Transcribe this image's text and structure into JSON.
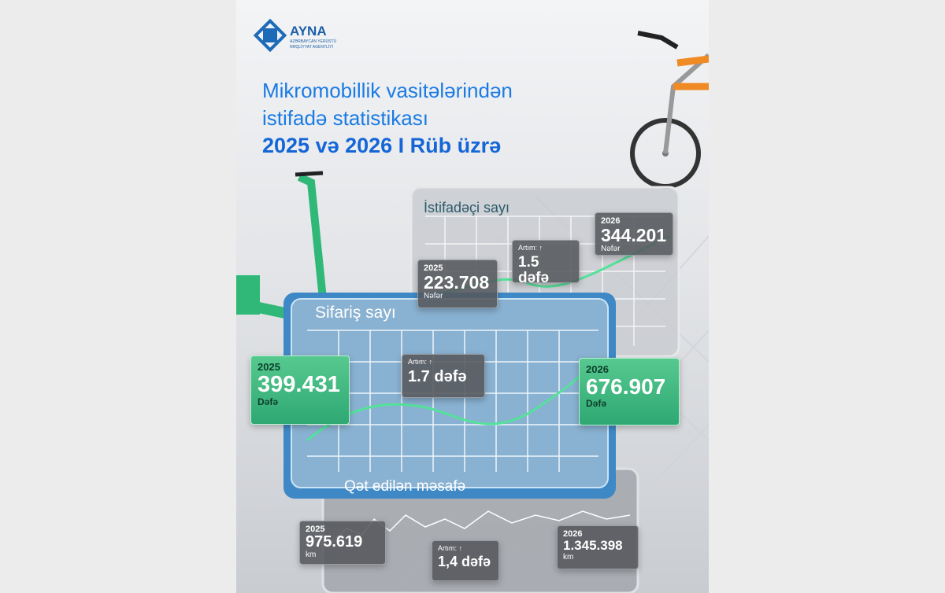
{
  "logo": {
    "name": "AYNA",
    "subtitle": "AZƏRBAYCAN YERÜSTÜ NƏQLİYYAT AGENTLİYİ"
  },
  "title": {
    "line1": "Mikromobillik vasitələrindən",
    "line2": "istifadə statistikası",
    "line3": "2025 və 2026 I Rüb üzrə"
  },
  "panels": [
    {
      "title": "İstifadəçi sayı",
      "y2025": {
        "year": "2025",
        "value": "223.708",
        "unit": "Nəfər"
      },
      "y2026": {
        "year": "2026",
        "value": "344.201",
        "unit": "Nəfər"
      },
      "growth": {
        "label": "Artım: ↑",
        "value": "1.5 dəfə"
      }
    },
    {
      "title": "Sifariş sayı",
      "y2025": {
        "year": "2025",
        "value": "399.431",
        "unit": "Dəfə"
      },
      "y2026": {
        "year": "2026",
        "value": "676.907",
        "unit": "Dəfə"
      },
      "growth": {
        "label": "Artım: ↑",
        "value": "1.7 dəfə"
      }
    },
    {
      "title": "Qət edilən məsafə",
      "y2025": {
        "year": "2025",
        "value": "975.619",
        "unit": "km"
      },
      "y2026": {
        "year": "2026",
        "value": "1.345.398",
        "unit": "km"
      },
      "growth": {
        "label": "Artım: ↑",
        "value": "1,4 dəfə"
      }
    }
  ]
}
